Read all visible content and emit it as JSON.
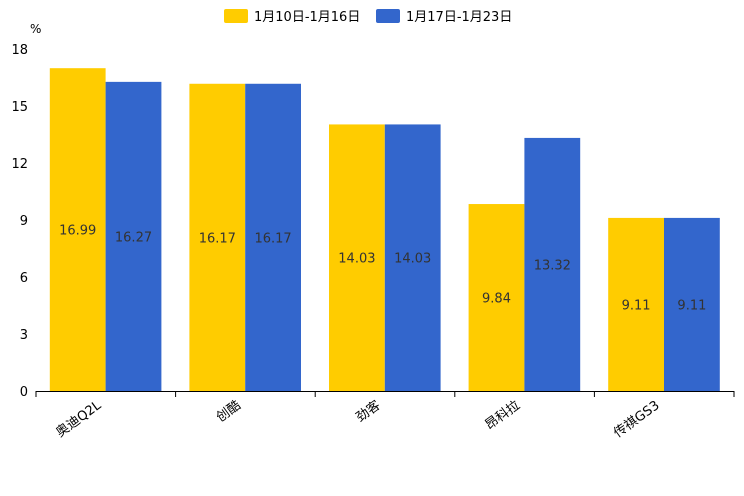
{
  "chart_data": {
    "type": "bar",
    "title": "",
    "xlabel": "",
    "ylabel": "%",
    "ylim": [
      0,
      18
    ],
    "yticks": [
      "0",
      "3",
      "6",
      "9",
      "12",
      "15",
      "18"
    ],
    "categories": [
      "奥迪Q2L",
      "创酷",
      "劲客",
      "昂科拉",
      "传祺GS3"
    ],
    "series": [
      {
        "name": "1月10日-1月16日",
        "color": "#FFCC00",
        "values": [
          16.99,
          16.17,
          14.03,
          9.84,
          9.11
        ]
      },
      {
        "name": "1月17日-1月23日",
        "color": "#3366CC",
        "values": [
          16.27,
          16.17,
          14.03,
          13.32,
          9.11
        ]
      }
    ],
    "legend_position": "top-center",
    "grid": false
  }
}
